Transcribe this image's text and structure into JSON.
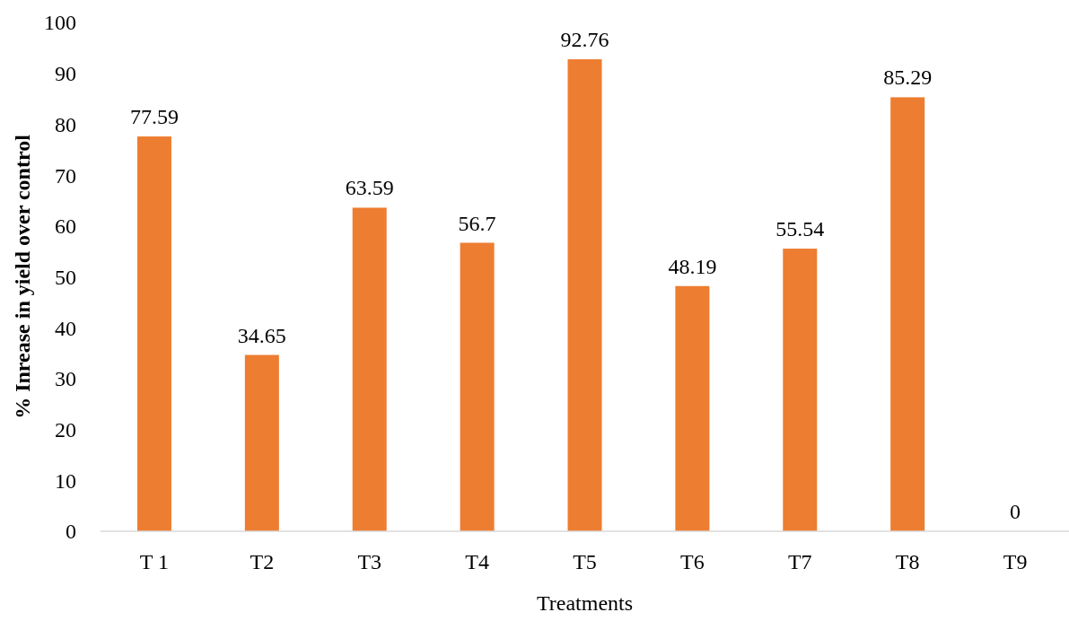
{
  "chart_data": {
    "type": "bar",
    "xlabel": "Treatments",
    "ylabel": "% Inrease in yield over control",
    "categories": [
      "T 1",
      "T2",
      "T3",
      "T4",
      "T5",
      "T6",
      "T7",
      "T8",
      "T9"
    ],
    "values": [
      77.59,
      34.65,
      63.59,
      56.7,
      92.76,
      48.19,
      55.54,
      85.29,
      0
    ],
    "color": "#ed7d31",
    "ylim": [
      0,
      100
    ],
    "yticks": [
      0,
      10,
      20,
      30,
      40,
      50,
      60,
      70,
      80,
      90,
      100
    ],
    "grid": false,
    "data_labels": true
  }
}
